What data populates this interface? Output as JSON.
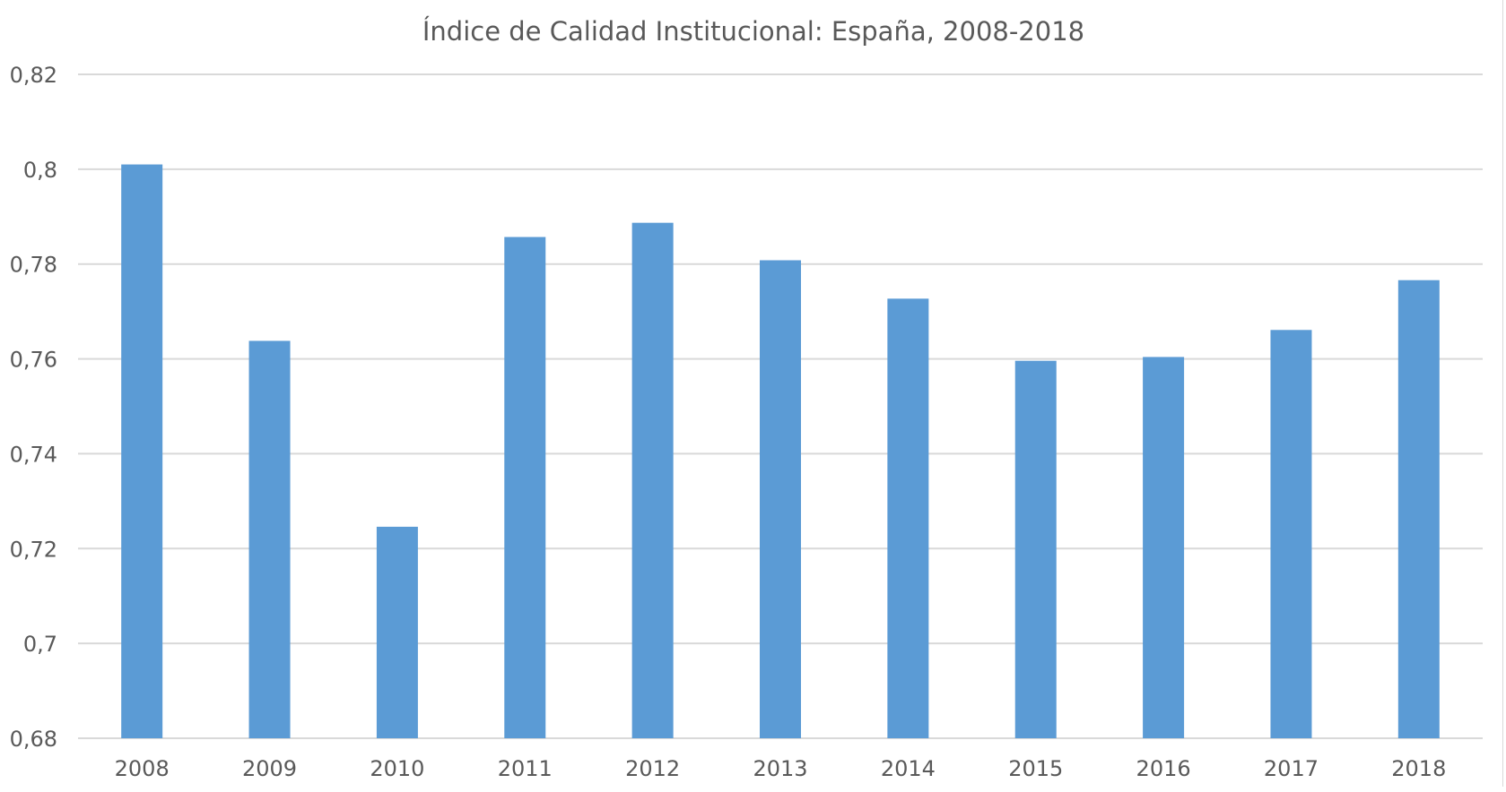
{
  "chart_data": {
    "type": "bar",
    "title": "Índice de Calidad Institucional: España, 2008-2018",
    "xlabel": "",
    "ylabel": "",
    "categories": [
      "2008",
      "2009",
      "2010",
      "2011",
      "2012",
      "2013",
      "2014",
      "2015",
      "2016",
      "2017",
      "2018"
    ],
    "values": [
      0.801,
      0.7638,
      0.7246,
      0.7857,
      0.7887,
      0.7808,
      0.7727,
      0.7596,
      0.7604,
      0.7661,
      0.7766
    ],
    "ylim": [
      0.68,
      0.82
    ],
    "yticks": [
      0.68,
      0.7,
      0.72,
      0.74,
      0.76,
      0.78,
      0.8,
      0.82
    ],
    "ytick_labels": [
      "0,68",
      "0,7",
      "0,72",
      "0,74",
      "0,76",
      "0,78",
      "0,8",
      "0,82"
    ],
    "grid": true,
    "legend": "none",
    "colors": {
      "bar": "#5b9bd5",
      "grid": "#d9d9d9",
      "text": "#595959"
    }
  }
}
